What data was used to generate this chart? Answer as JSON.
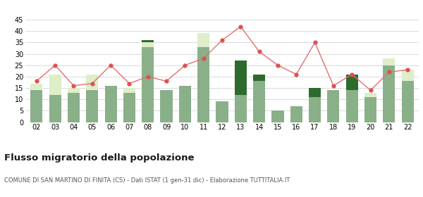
{
  "years": [
    "02",
    "03",
    "04",
    "05",
    "06",
    "07",
    "08",
    "09",
    "10",
    "11",
    "12",
    "13",
    "14",
    "15",
    "16",
    "17",
    "18",
    "19",
    "20",
    "21",
    "22"
  ],
  "iscritti_altri_comuni": [
    14,
    12,
    13,
    14,
    16,
    13,
    33,
    14,
    16,
    33,
    9,
    12,
    18,
    5,
    7,
    11,
    14,
    14,
    11,
    25,
    18
  ],
  "iscritti_estero": [
    3,
    9,
    2,
    7,
    0,
    2,
    2,
    0,
    0,
    6,
    0,
    0,
    0,
    0,
    0,
    0,
    0,
    0,
    2,
    3,
    5
  ],
  "iscritti_altri": [
    0,
    0,
    0,
    0,
    0,
    0,
    1,
    0,
    0,
    0,
    0,
    15,
    3,
    0,
    0,
    4,
    0,
    7,
    0,
    0,
    0
  ],
  "cancellati": [
    18,
    25,
    16,
    17,
    25,
    17,
    20,
    18,
    25,
    28,
    36,
    42,
    31,
    25,
    21,
    35,
    16,
    21,
    14,
    22,
    23
  ],
  "color_altri_comuni": "#8ab08a",
  "color_estero": "#ddeec8",
  "color_altri": "#2d6b2d",
  "color_cancellati": "#e05050",
  "color_cancellati_line": "#e07070",
  "ylabel_max": 45,
  "yticks": [
    0,
    5,
    10,
    15,
    20,
    25,
    30,
    35,
    40,
    45
  ],
  "title": "Flusso migratorio della popolazione",
  "subtitle": "COMUNE DI SAN MARTINO DI FINITA (CS) - Dati ISTAT (1 gen-31 dic) - Elaborazione TUTTITALIA.IT",
  "bg_color": "#ffffff",
  "grid_color": "#cccccc"
}
